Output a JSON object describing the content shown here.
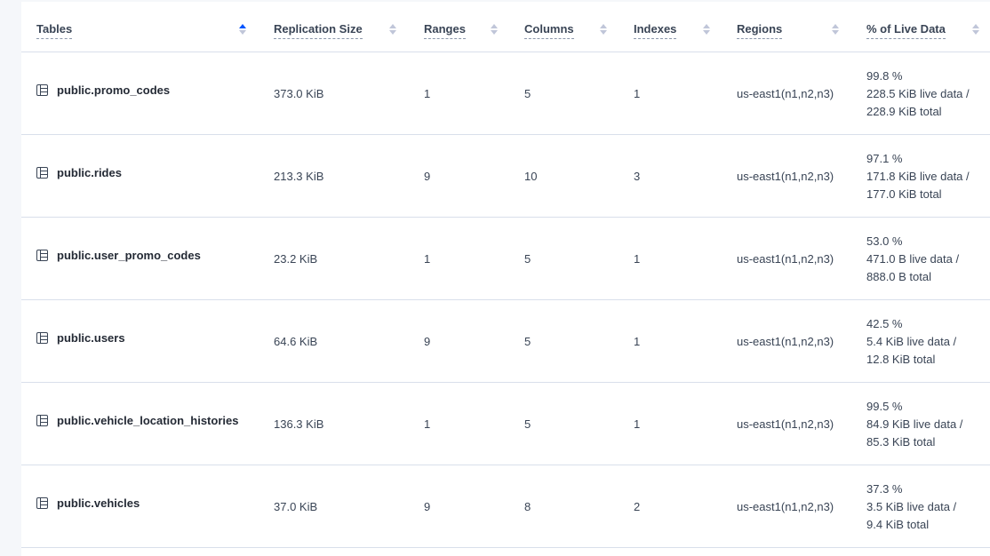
{
  "columns": [
    "Tables",
    "Replication Size",
    "Ranges",
    "Columns",
    "Indexes",
    "Regions",
    "% of Live Data"
  ],
  "sort": {
    "column": "Tables",
    "direction": "ascending",
    "active_color": "#0055ff"
  },
  "rows": [
    {
      "table": "public.promo_codes",
      "size": "373.0 KiB",
      "ranges": "1",
      "columns": "5",
      "indexes": "1",
      "regions": "us-east1(n1,n2,n3)",
      "pct": "99.8 %",
      "live": "228.5 KiB live data /",
      "total": "228.9 KiB total"
    },
    {
      "table": "public.rides",
      "size": "213.3 KiB",
      "ranges": "9",
      "columns": "10",
      "indexes": "3",
      "regions": "us-east1(n1,n2,n3)",
      "pct": "97.1 %",
      "live": "171.8 KiB live data /",
      "total": "177.0 KiB total"
    },
    {
      "table": "public.user_promo_codes",
      "size": "23.2 KiB",
      "ranges": "1",
      "columns": "5",
      "indexes": "1",
      "regions": "us-east1(n1,n2,n3)",
      "pct": "53.0 %",
      "live": "471.0 B live data /",
      "total": "888.0 B total"
    },
    {
      "table": "public.users",
      "size": "64.6 KiB",
      "ranges": "9",
      "columns": "5",
      "indexes": "1",
      "regions": "us-east1(n1,n2,n3)",
      "pct": "42.5 %",
      "live": "5.4 KiB live data /",
      "total": "12.8 KiB total"
    },
    {
      "table": "public.vehicle_location_histories",
      "size": "136.3 KiB",
      "ranges": "1",
      "columns": "5",
      "indexes": "1",
      "regions": "us-east1(n1,n2,n3)",
      "pct": "99.5 %",
      "live": "84.9 KiB live data /",
      "total": "85.3 KiB total"
    },
    {
      "table": "public.vehicles",
      "size": "37.0 KiB",
      "ranges": "9",
      "columns": "8",
      "indexes": "2",
      "regions": "us-east1(n1,n2,n3)",
      "pct": "37.3 %",
      "live": "3.5 KiB live data /",
      "total": "9.4 KiB total"
    }
  ]
}
